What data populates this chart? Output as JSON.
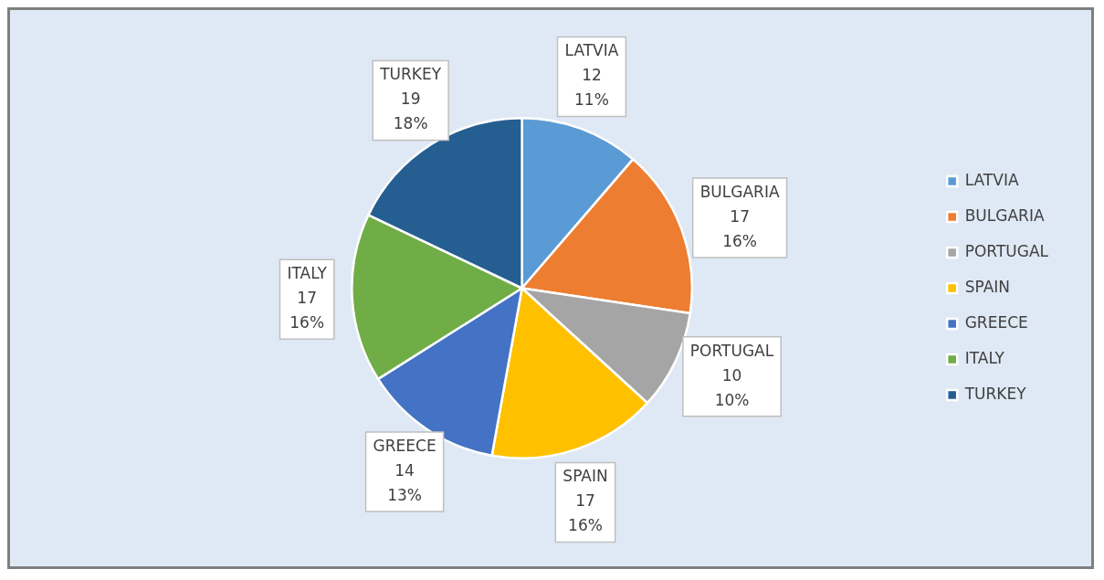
{
  "chart_data": {
    "type": "pie",
    "categories": [
      "LATVIA",
      "BULGARIA",
      "PORTUGAL",
      "SPAIN",
      "GREECE",
      "ITALY",
      "TURKEY"
    ],
    "values": [
      12,
      17,
      10,
      17,
      14,
      17,
      19
    ],
    "colors": [
      "#5b9bd5",
      "#ed7d31",
      "#a5a5a5",
      "#ffc000",
      "#4472c4",
      "#70ad47",
      "#255e91"
    ],
    "value_labels": [
      "12\n11%",
      "17\n16%",
      "10\n10%",
      "17\n16%",
      "14\n13%",
      "17\n16%",
      "19\n18%"
    ],
    "legend": "right"
  }
}
